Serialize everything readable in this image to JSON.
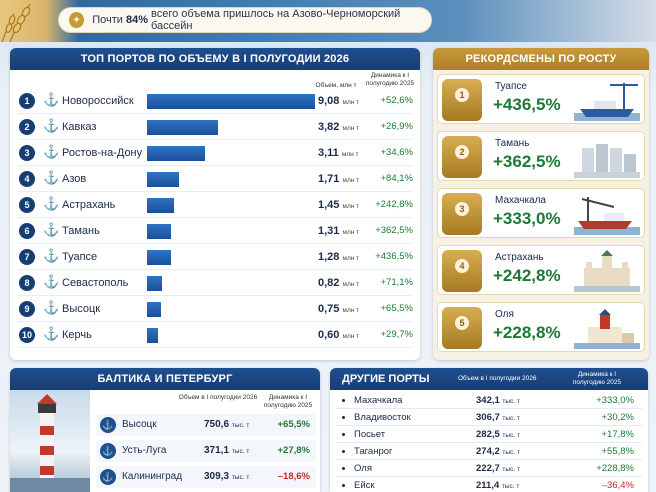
{
  "banner": {
    "pre": "Почти",
    "pct": "84%",
    "post": "всего объема пришлось на Азово-Черноморский бассейн"
  },
  "top": {
    "title": "ТОП ПОРТОВ ПО ОБЪЕМУ В I ПОЛУГОДИИ 2026",
    "col_volume": "Объем, млн т",
    "col_dyn": "Динамика к I полугодию 2025",
    "unit": "млн т"
  },
  "records": {
    "title": "РЕКОРДСМЕНЫ ПО РОСТУ"
  },
  "baltic": {
    "title": "БАЛТИКА И ПЕТЕРБУРГ",
    "col_volume": "Объем в I полугодии 2026",
    "col_dyn": "Динамика к I полугодию 2025",
    "unit": "тыс. т",
    "rows": [
      {
        "name": "Высоцк",
        "value": "750,6",
        "dyn": "+65,5%",
        "sign": "pos"
      },
      {
        "name": "Усть-Луга",
        "value": "371,1",
        "dyn": "+27,8%",
        "sign": "pos"
      },
      {
        "name": "Калининград",
        "value": "309,3",
        "dyn": "–18,6%",
        "sign": "neg"
      }
    ]
  },
  "other": {
    "title": "ДРУГИЕ ПОРТЫ",
    "col_volume": "Объем в I полугодии 2026",
    "col_dyn": "Динамика к I полугодию 2025",
    "unit": "тыс. т",
    "rows": [
      {
        "name": "Махачкала",
        "value": "342,1",
        "dyn": "+333,0%",
        "sign": "pos"
      },
      {
        "name": "Владивосток",
        "value": "306,7",
        "dyn": "+30,2%",
        "sign": "pos"
      },
      {
        "name": "Посьет",
        "value": "282,5",
        "dyn": "+17,8%",
        "sign": "pos"
      },
      {
        "name": "Таганрог",
        "value": "274,2",
        "dyn": "+55,8%",
        "sign": "pos"
      },
      {
        "name": "Оля",
        "value": "222,7",
        "dyn": "+228,8%",
        "sign": "pos"
      },
      {
        "name": "Ейск",
        "value": "211,4",
        "dyn": "–36,4%",
        "sign": "neg"
      }
    ]
  },
  "chart_data": {
    "type": "bar",
    "title": "ТОП ПОРТОВ ПО ОБЪЕМУ В I ПОЛУГОДИИ 2026",
    "categories": [
      "Новороссийск",
      "Кавказ",
      "Ростов-на-Дону",
      "Азов",
      "Астрахань",
      "Тамань",
      "Туапсе",
      "Севастополь",
      "Высоцк",
      "Керчь"
    ],
    "values": [
      9.08,
      3.82,
      3.11,
      1.71,
      1.45,
      1.31,
      1.28,
      0.82,
      0.75,
      0.6
    ],
    "value_labels": [
      "9,08",
      "3,82",
      "3,11",
      "1,71",
      "1,45",
      "1,31",
      "1,28",
      "0,82",
      "0,75",
      "0,60"
    ],
    "dynamics": [
      "+52,6%",
      "+26,9%",
      "+34,6%",
      "+84,1%",
      "+242,8%",
      "+362,5%",
      "+436,5%",
      "+71,1%",
      "+65,5%",
      "+29,7%"
    ],
    "records": [
      {
        "rank": "1",
        "name": "Туапсе",
        "value": "+436,5%"
      },
      {
        "rank": "2",
        "name": "Тамань",
        "value": "+362,5%"
      },
      {
        "rank": "3",
        "name": "Махачкала",
        "value": "+333,0%"
      },
      {
        "rank": "4",
        "name": "Астрахань",
        "value": "+242,8%"
      },
      {
        "rank": "5",
        "name": "Оля",
        "value": "+228,8%"
      }
    ]
  }
}
